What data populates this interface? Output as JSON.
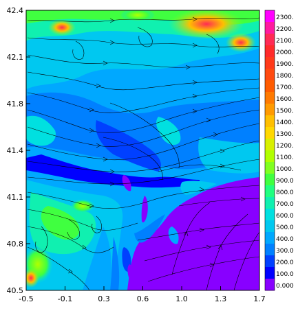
{
  "chart_data": {
    "type": "heatmap",
    "title": "",
    "xlabel": "",
    "ylabel": "",
    "xlim": [
      -0.5,
      1.7
    ],
    "ylim": [
      40.5,
      42.4
    ],
    "x_ticks": [
      "-0.5",
      "-0.1",
      "0.3",
      "0.6",
      "1.0",
      "1.3",
      "1.7"
    ],
    "y_ticks": [
      "40.5",
      "40.8",
      "41.1",
      "41.4",
      "41.8",
      "42.1",
      "42.4"
    ],
    "colorbar": {
      "levels": [
        "2300.",
        "2200.",
        "2100.",
        "2000.",
        "1900.",
        "1800.",
        "1700.",
        "1600.",
        "1500.",
        "1400.",
        "1300.",
        "1200.",
        "1100.",
        "1000.",
        "900.0",
        "800.0",
        "700.0",
        "600.0",
        "500.0",
        "400.0",
        "300.0",
        "200.0",
        "100.0",
        "0.000"
      ],
      "colors": [
        "#ff00ff",
        "#ff1aa0",
        "#ff2a55",
        "#ff2a2a",
        "#ff3a1a",
        "#ff4a10",
        "#ff5c00",
        "#ff7a00",
        "#ff9a00",
        "#ffbf00",
        "#ffd800",
        "#d8f000",
        "#b0ff00",
        "#80ff20",
        "#40ff40",
        "#20ff80",
        "#10f0b0",
        "#00e0e0",
        "#00c8f0",
        "#00a8ff",
        "#0080ff",
        "#0040ff",
        "#0000ff",
        "#8800ff"
      ]
    },
    "overlay": "streamlines"
  }
}
